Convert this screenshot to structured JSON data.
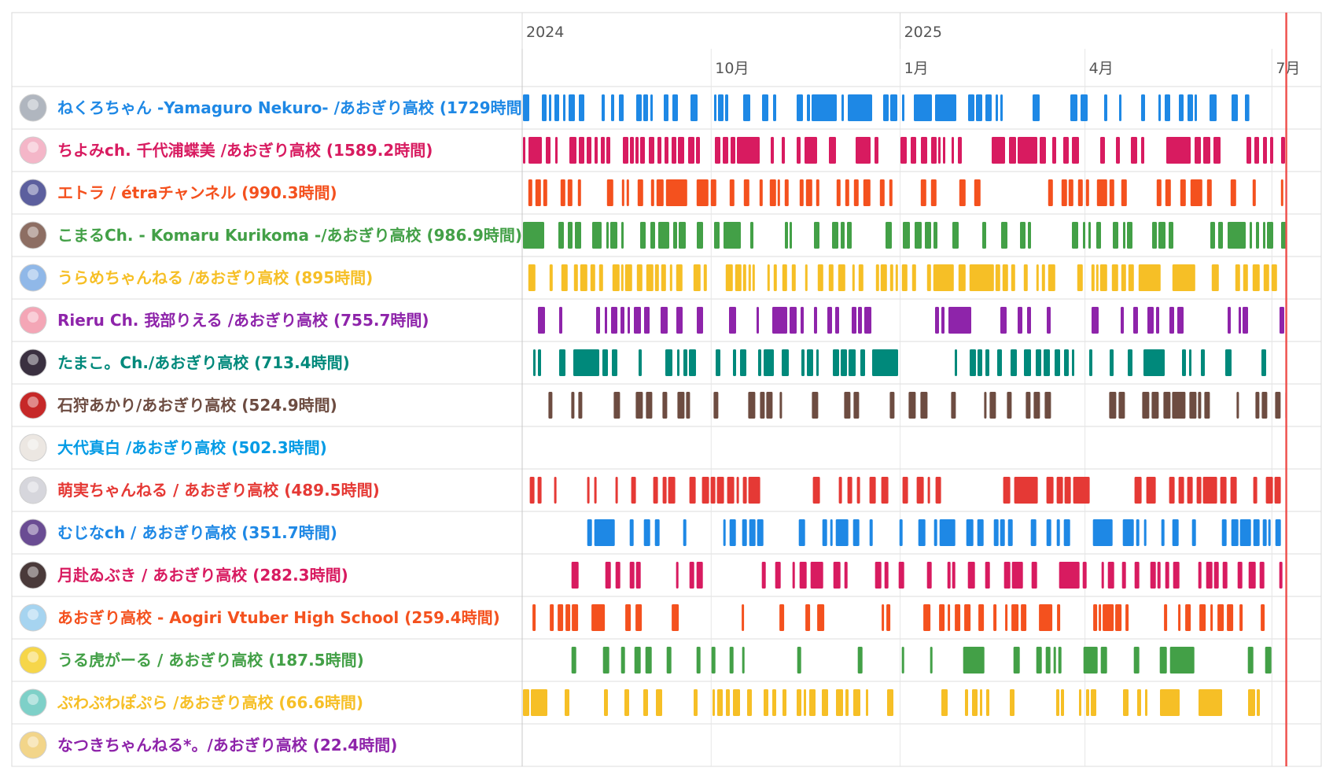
{
  "chart_data": {
    "type": "timeline",
    "title": "",
    "year_labels": [
      {
        "label": "2024",
        "date": "2024-07-01"
      },
      {
        "label": "2025",
        "date": "2025-01-01"
      }
    ],
    "month_labels": [
      {
        "label": "10月",
        "date": "2024-10-01"
      },
      {
        "label": "1月",
        "date": "2025-01-01"
      },
      {
        "label": "4月",
        "date": "2025-04-01"
      },
      {
        "label": "7月",
        "date": "2025-07-01"
      }
    ],
    "x_range": [
      "2024-07-01",
      "2025-07-25"
    ],
    "current_date": "2025-07-08",
    "channels": [
      {
        "name": "ねくろちゃん -Yamaguro Nekuro- /あおぎり高校 (1729時間)",
        "color": "#1e88e5",
        "avatar_color": "#b0b6bf",
        "density": 0.55,
        "start": "2024-07-01",
        "end": "2025-06-20"
      },
      {
        "name": "ちよみch. 千代浦蝶美 /あおぎり高校 (1589.2時間)",
        "color": "#d81b60",
        "avatar_color": "#f4b6c8",
        "density": 0.65,
        "start": "2024-07-01",
        "end": "2025-07-08"
      },
      {
        "name": "エトラ / étraチャンネル (990.3時間)",
        "color": "#f4511e",
        "avatar_color": "#5c5f9e",
        "density": 0.5,
        "start": "2024-07-04",
        "end": "2025-07-08"
      },
      {
        "name": "こまるCh. - Komaru Kurikoma -/あおぎり高校 (986.9時間)",
        "color": "#43a047",
        "avatar_color": "#8d6e63",
        "density": 0.5,
        "start": "2024-07-01",
        "end": "2025-07-08"
      },
      {
        "name": "うらめちゃんねる /あおぎり高校 (895時間)",
        "color": "#f6bf26",
        "avatar_color": "#90b8e8",
        "density": 0.6,
        "start": "2024-07-04",
        "end": "2025-07-06"
      },
      {
        "name": "Rieru Ch. 我部りえる /あおぎり高校 (755.7時間)",
        "color": "#8e24aa",
        "avatar_color": "#f4a6b6",
        "density": 0.45,
        "start": "2024-07-01",
        "end": "2025-07-08"
      },
      {
        "name": "たまこ。Ch./あおぎり高校 (713.4時間)",
        "color": "#00897b",
        "avatar_color": "#3a3040",
        "density": 0.55,
        "start": "2024-07-01",
        "end": "2025-07-06"
      },
      {
        "name": "石狩あかり/あおぎり高校 (524.9時間)",
        "color": "#6d4c41",
        "avatar_color": "#c62828",
        "density": 0.45,
        "start": "2024-07-05",
        "end": "2025-07-08"
      },
      {
        "name": "大代真白 /あおぎり高校 (502.3時間)",
        "color": "#039be5",
        "avatar_color": "#ece7e2",
        "density": 0,
        "start": "2024-07-01",
        "end": "2024-07-01"
      },
      {
        "name": "萌実ちゃんねる / あおぎり高校 (489.5時間)",
        "color": "#e53935",
        "avatar_color": "#d6d6dc",
        "density": 0.5,
        "start": "2024-07-02",
        "end": "2025-07-08"
      },
      {
        "name": "むじなch / あおぎり高校 (351.7時間)",
        "color": "#1e88e5",
        "avatar_color": "#6a4c93",
        "density": 0.45,
        "start": "2024-07-25",
        "end": "2025-07-06"
      },
      {
        "name": "月赴ゐぶき / あおぎり高校 (282.3時間)",
        "color": "#d81b60",
        "avatar_color": "#4a3a3a",
        "density": 0.45,
        "start": "2024-07-25",
        "end": "2025-07-08"
      },
      {
        "name": "あおぎり高校 - Aogiri Vtuber High School (259.4時間)",
        "color": "#f4511e",
        "avatar_color": "#a6d4f0",
        "density": 0.45,
        "start": "2024-07-06",
        "end": "2025-07-08"
      },
      {
        "name": "うる虎がーる / あおぎり高校 (187.5時間)",
        "color": "#43a047",
        "avatar_color": "#f6d64a",
        "density": 0.35,
        "start": "2024-07-25",
        "end": "2025-07-08"
      },
      {
        "name": "ぷわぷわぽぷら /あおぎり高校 (66.6時間)",
        "color": "#f6bf26",
        "avatar_color": "#7ed0c8",
        "density": 0.35,
        "start": "2024-07-01",
        "end": "2025-07-06"
      },
      {
        "name": "なつきちゃんねる*。/あおぎり高校 (22.4時間)",
        "color": "#8e24aa",
        "avatar_color": "#f2d58a",
        "density": 0,
        "start": "2024-07-01",
        "end": "2024-07-01"
      }
    ]
  }
}
